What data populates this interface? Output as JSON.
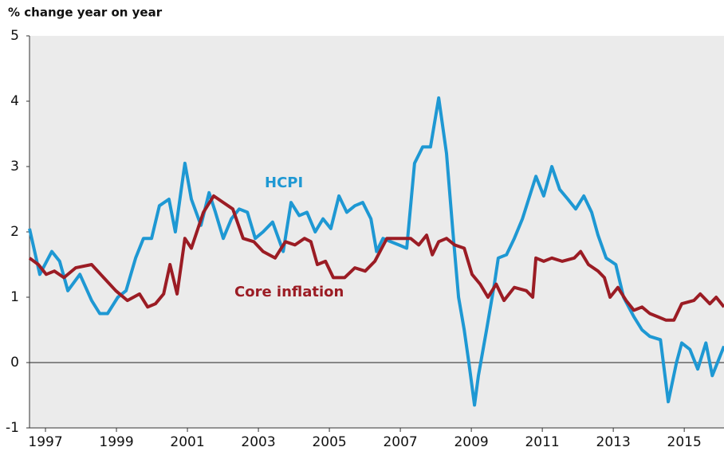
{
  "chart_data": {
    "type": "line",
    "ylabel": "% change year on year",
    "annotations": [
      {
        "text": "HCPI",
        "color": "#1e98d3"
      },
      {
        "text": "Core inflation",
        "color": "#9b1c24"
      }
    ],
    "xlim": [
      1996.55,
      2016.12
    ],
    "xticks": [
      1997,
      1999,
      2001,
      2003,
      2005,
      2007,
      2009,
      2011,
      2013,
      2015
    ],
    "ylim": [
      -1,
      5
    ],
    "yticks": [
      -1,
      0,
      1,
      2,
      3,
      4,
      5
    ],
    "series": [
      {
        "name": "HCPI",
        "color": "#1e98d3",
        "x": [
          1996.55,
          1996.84,
          1997.18,
          1997.4,
          1997.63,
          1997.97,
          1998.3,
          1998.53,
          1998.75,
          1999.04,
          1999.27,
          1999.54,
          1999.76,
          1999.99,
          2000.21,
          2000.48,
          2000.66,
          2000.93,
          2001.11,
          2001.38,
          2001.61,
          2001.79,
          2002.01,
          2002.24,
          2002.46,
          2002.69,
          2002.91,
          2003.13,
          2003.4,
          2003.7,
          2003.92,
          2004.15,
          2004.37,
          2004.6,
          2004.82,
          2005.04,
          2005.27,
          2005.49,
          2005.72,
          2005.94,
          2006.17,
          2006.33,
          2006.51,
          2006.73,
          2006.96,
          2007.18,
          2007.4,
          2007.63,
          2007.85,
          2008.08,
          2008.3,
          2008.48,
          2008.64,
          2008.8,
          2008.93,
          2009.09,
          2009.2,
          2009.43,
          2009.65,
          2009.76,
          2009.99,
          2010.21,
          2010.44,
          2010.82,
          2011.04,
          2011.27,
          2011.49,
          2011.72,
          2011.94,
          2012.17,
          2012.39,
          2012.57,
          2012.8,
          2013.07,
          2013.29,
          2013.58,
          2013.81,
          2014.03,
          2014.33,
          2014.55,
          2014.78,
          2014.93,
          2015.16,
          2015.38,
          2015.61,
          2015.79,
          2016.12
        ],
        "values": [
          2.05,
          1.35,
          1.7,
          1.55,
          1.1,
          1.35,
          0.95,
          0.75,
          0.75,
          1.0,
          1.1,
          1.6,
          1.9,
          1.9,
          2.4,
          2.5,
          2.0,
          3.05,
          2.5,
          2.1,
          2.6,
          2.3,
          1.9,
          2.2,
          2.35,
          2.3,
          1.9,
          2.0,
          2.15,
          1.7,
          2.45,
          2.25,
          2.3,
          2.0,
          2.2,
          2.05,
          2.55,
          2.3,
          2.4,
          2.45,
          2.2,
          1.7,
          1.9,
          1.85,
          1.8,
          1.75,
          3.05,
          3.3,
          3.3,
          4.05,
          3.2,
          2.0,
          1.0,
          0.5,
          0.0,
          -0.65,
          -0.2,
          0.5,
          1.2,
          1.6,
          1.65,
          1.9,
          2.2,
          2.85,
          2.55,
          3.0,
          2.65,
          2.5,
          2.35,
          2.55,
          2.3,
          1.95,
          1.6,
          1.5,
          1.0,
          0.7,
          0.5,
          0.4,
          0.35,
          -0.6,
          0.0,
          0.3,
          0.2,
          -0.1,
          0.3,
          -0.2,
          0.25
        ]
      },
      {
        "name": "Core inflation",
        "color": "#9b1c24",
        "x": [
          1996.55,
          1996.8,
          1997.02,
          1997.25,
          1997.52,
          1997.85,
          1998.3,
          1998.64,
          1998.98,
          1999.31,
          1999.65,
          1999.88,
          2000.1,
          2000.33,
          2000.51,
          2000.71,
          2000.93,
          2001.11,
          2001.45,
          2001.74,
          2002.01,
          2002.28,
          2002.57,
          2002.87,
          2003.13,
          2003.47,
          2003.76,
          2004.03,
          2004.3,
          2004.48,
          2004.66,
          2004.89,
          2005.11,
          2005.43,
          2005.72,
          2006.01,
          2006.28,
          2006.62,
          2006.96,
          2007.29,
          2007.52,
          2007.74,
          2007.9,
          2008.08,
          2008.3,
          2008.53,
          2008.8,
          2009.02,
          2009.25,
          2009.47,
          2009.7,
          2009.92,
          2010.21,
          2010.55,
          2010.73,
          2010.82,
          2011.04,
          2011.27,
          2011.56,
          2011.9,
          2012.08,
          2012.3,
          2012.57,
          2012.75,
          2012.91,
          2013.13,
          2013.36,
          2013.58,
          2013.81,
          2014.03,
          2014.26,
          2014.48,
          2014.71,
          2014.93,
          2015.27,
          2015.45,
          2015.72,
          2015.9,
          2016.12
        ],
        "values": [
          1.6,
          1.5,
          1.35,
          1.4,
          1.3,
          1.45,
          1.5,
          1.3,
          1.1,
          0.95,
          1.05,
          0.85,
          0.9,
          1.05,
          1.5,
          1.05,
          1.9,
          1.75,
          2.3,
          2.55,
          2.45,
          2.35,
          1.9,
          1.85,
          1.7,
          1.6,
          1.85,
          1.8,
          1.9,
          1.85,
          1.5,
          1.55,
          1.3,
          1.3,
          1.45,
          1.4,
          1.55,
          1.9,
          1.9,
          1.9,
          1.8,
          1.95,
          1.65,
          1.85,
          1.9,
          1.8,
          1.75,
          1.35,
          1.2,
          1.0,
          1.2,
          0.95,
          1.15,
          1.1,
          1.0,
          1.6,
          1.55,
          1.6,
          1.55,
          1.6,
          1.7,
          1.5,
          1.4,
          1.3,
          1.0,
          1.15,
          0.95,
          0.8,
          0.85,
          0.75,
          0.7,
          0.65,
          0.65,
          0.9,
          0.95,
          1.05,
          0.9,
          1.0,
          0.85
        ]
      }
    ]
  }
}
